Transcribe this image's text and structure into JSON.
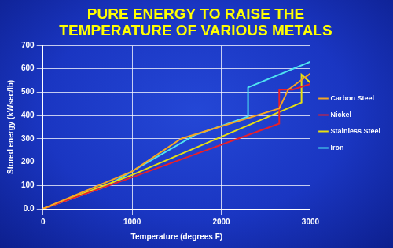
{
  "chart_data": {
    "type": "line",
    "title": [
      "PURE ENERGY TO RAISE THE",
      "TEMPERATURE OF VARIOUS METALS"
    ],
    "x_label": "Temperature (degrees F)",
    "y_label": "Stored energy (kWsec/lb)",
    "series": [
      {
        "name": "Carbon Steel",
        "color": "#f5a623",
        "x": [
          0,
          1000,
          1550,
          2650,
          2750,
          3000
        ],
        "values": [
          0,
          160,
          300,
          430,
          510,
          580
        ]
      },
      {
        "name": "Nickel",
        "color": "#e8202a",
        "x": [
          0,
          1000,
          2650,
          2650,
          2800,
          3000
        ],
        "values": [
          0,
          135,
          365,
          510,
          510,
          535
        ]
      },
      {
        "name": "Stainless Steel",
        "color": "#e8e010",
        "x": [
          0,
          1000,
          2900,
          2900,
          3000
        ],
        "values": [
          0,
          145,
          455,
          575,
          540
        ]
      },
      {
        "name": "Iron",
        "color": "#4fe3f0",
        "x": [
          0,
          700,
          1700,
          2300,
          2300,
          3000
        ],
        "values": [
          0,
          95,
          315,
          395,
          520,
          630
        ]
      }
    ],
    "xlim": [
      0,
      3000
    ],
    "xticks": [
      0,
      1000,
      2000,
      3000
    ],
    "ylim": [
      0,
      700
    ],
    "yticks": [
      {
        "value": 0,
        "label": "0.0"
      },
      100,
      200,
      300,
      400,
      500,
      600,
      700
    ],
    "grid": true,
    "legend": "right"
  }
}
